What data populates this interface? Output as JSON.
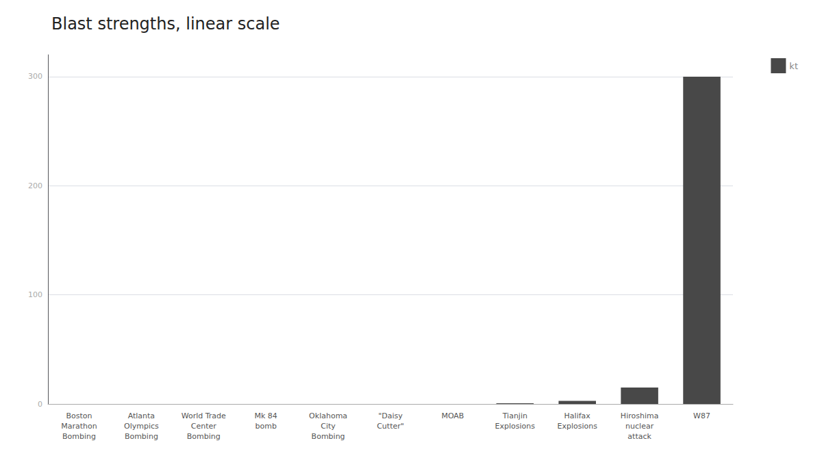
{
  "chart_data": {
    "type": "bar",
    "title": "Blast strengths, linear scale",
    "categories": [
      "Boston\nMarathon\nBombing",
      "Atlanta\nOlympics\nBombing",
      "World Trade\nCenter\nBombing",
      "Mk 84\nbomb",
      "Oklahoma\nCity\nBombing",
      "\"Daisy\nCutter\"",
      "MOAB",
      "Tianjin\nExplosions",
      "Halifax\nExplosions",
      "Hiroshima\nnuclear\nattack",
      "W87"
    ],
    "series": [
      {
        "name": "kt",
        "color": "#484848",
        "values": [
          3e-05,
          0.001,
          0.001,
          0.001,
          0.002,
          0.01,
          0.011,
          0.6,
          2.9,
          15,
          300
        ]
      }
    ],
    "ylim": [
      0,
      320
    ],
    "yticks": [
      0,
      100,
      200,
      300
    ],
    "grid": true,
    "legend": "upper right"
  }
}
